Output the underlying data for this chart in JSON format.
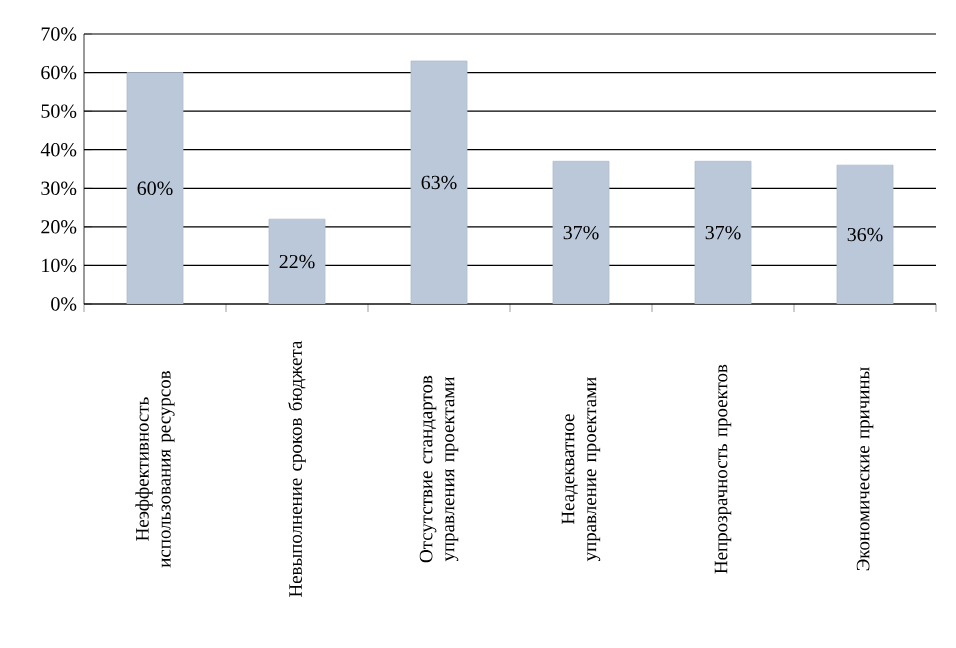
{
  "chart_data": {
    "type": "bar",
    "categories": [
      "Неэффективность использования ресурсов",
      "Невыполнение сроков бюджета",
      "Отсутствие стандартов управления проектами",
      "Неадекватное управление проектами",
      "Непрозрачность проектов",
      "Экономические причины"
    ],
    "values": [
      60,
      22,
      63,
      37,
      37,
      36
    ],
    "color": "#bac8da",
    "ylim": [
      0,
      70
    ],
    "yticks": [
      {
        "value": 0,
        "label": "0%"
      },
      {
        "value": 10,
        "label": "10%"
      },
      {
        "value": 20,
        "label": "20%"
      },
      {
        "value": 30,
        "label": "30%"
      },
      {
        "value": 40,
        "label": "40%"
      },
      {
        "value": 50,
        "label": "50%"
      },
      {
        "value": 60,
        "label": "60%"
      },
      {
        "value": 70,
        "label": "70%"
      }
    ],
    "value_labels": [
      "60%",
      "22%",
      "63%",
      "37%",
      "37%",
      "36%"
    ],
    "grid": "y"
  }
}
